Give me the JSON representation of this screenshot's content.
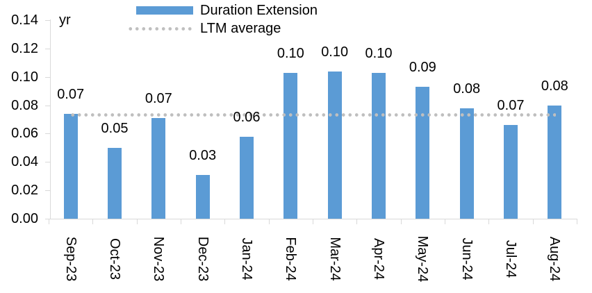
{
  "chart_data": {
    "type": "bar",
    "title": "",
    "unit": "yr",
    "categories": [
      "Sep-23",
      "Oct-23",
      "Nov-23",
      "Dec-23",
      "Jan-24",
      "Feb-24",
      "Mar-24",
      "Apr-24",
      "May-24",
      "Jun-24",
      "Jul-24",
      "Aug-24"
    ],
    "series": [
      {
        "name": "Duration Extension",
        "type": "bar",
        "color": "#5B9BD5",
        "values": [
          0.074,
          0.05,
          0.071,
          0.031,
          0.058,
          0.103,
          0.104,
          0.103,
          0.093,
          0.078,
          0.066,
          0.08
        ],
        "labels": [
          "0.07",
          "0.05",
          "0.07",
          "0.03",
          "0.06",
          "0.10",
          "0.10",
          "0.10",
          "0.09",
          "0.08",
          "0.07",
          "0.08"
        ]
      },
      {
        "name": "LTM average",
        "type": "line",
        "line_style": "dotted",
        "color": "#BFBFBF",
        "value": 0.073
      }
    ],
    "ylim": [
      0,
      0.14
    ],
    "ytick_step": 0.02,
    "ytick_decimals": 2,
    "xlabel": "",
    "ylabel": "",
    "legend_position": "top",
    "grid": false,
    "axis_color": "#D9D9D9",
    "text_color": "#000000",
    "background_color": "#FFFFFF"
  }
}
